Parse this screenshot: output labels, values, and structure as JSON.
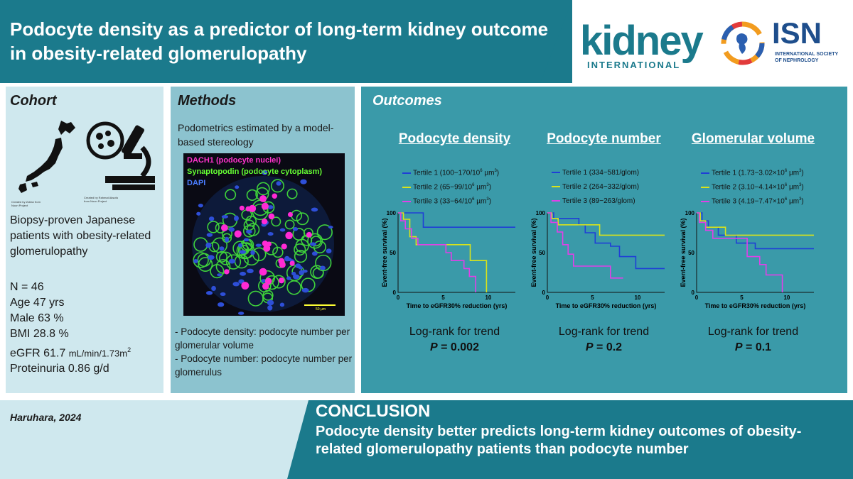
{
  "header": {
    "title": "Podocyte density as a predictor of long-term kidney outcome in obesity-related glomerulopathy",
    "journal_logo": "kidney",
    "journal_logo_sub": "INTERNATIONAL",
    "society_logo": "ISN",
    "society_sub": "INTERNATIONAL SOCIETY OF NEPHROLOGY"
  },
  "cohort": {
    "heading": "Cohort",
    "credit_left": "Created by Zoltan from Noun Project",
    "credit_right": "Created by Rahmat Aksofa from Noun Project",
    "description": "Biopsy-proven Japanese patients with obesity-related glomerulopathy",
    "stats": [
      {
        "label": "N = 46"
      },
      {
        "label": "Age 47 yrs"
      },
      {
        "label": "Male 63 %"
      },
      {
        "label": "BMI 28.8 %"
      },
      {
        "label": "eGFR 61.7",
        "unit": "mL/min/1.73m",
        "sup": "2"
      },
      {
        "label": "Proteinuria 0.86 g/d"
      }
    ]
  },
  "methods": {
    "heading": "Methods",
    "subheading": "Podometrics estimated by a model-based stereology",
    "image_labels": {
      "dach1": "DACH1 (podocyte nuclei)",
      "synaptopodin": "Synaptopodin (podocyte cytoplasm)",
      "dapi": "DAPI",
      "scale": "50 µm"
    },
    "notes": [
      "- Podocyte density: podocyte number per glomerular volume",
      "- Podocyte number: podocyte number per glomerulus"
    ]
  },
  "outcomes": {
    "heading": "Outcomes"
  },
  "colors": {
    "tertile1": "#1f3fd6",
    "tertile2": "#d9e31a",
    "tertile3": "#e040e8",
    "teal": "#1b7a8c",
    "light_panel": "#cfe8ee",
    "mid_panel": "#8cc3cf",
    "outcome_panel": "#3a9aa9"
  },
  "chart_data": [
    {
      "type": "line",
      "title": "Podocyte density",
      "xlabel": "Time to eGFR30% reduction (yrs)",
      "ylabel": "Event-free survival (%)",
      "xlim": [
        0,
        13
      ],
      "ylim": [
        0,
        100
      ],
      "xticks": [
        "0",
        "5",
        "10"
      ],
      "yticks": [
        "0",
        "50",
        "100"
      ],
      "series": [
        {
          "name": "Tertile 1 (100−170/10",
          "name_sup": "6",
          "name_tail": " µm",
          "name_sup2": "3",
          "name_end": ")",
          "x": [
            0,
            2.8,
            2.8,
            13
          ],
          "y": [
            100,
            100,
            82,
            82
          ]
        },
        {
          "name": "Tertile 2 (65−99/10",
          "name_sup": "6",
          "name_tail": " µm",
          "name_sup2": "3",
          "name_end": ")",
          "x": [
            0,
            0.6,
            0.6,
            1.3,
            1.3,
            2,
            2,
            8,
            8,
            9.8,
            9.8
          ],
          "y": [
            100,
            100,
            92,
            92,
            70,
            70,
            60,
            60,
            40,
            40,
            0
          ]
        },
        {
          "name": "Tertile 3 (33−64/10",
          "name_sup": "6",
          "name_tail": " µm",
          "name_sup2": "3",
          "name_end": ")",
          "x": [
            0,
            0.3,
            0.3,
            0.8,
            0.8,
            1.5,
            1.5,
            2.2,
            2.2,
            5.3,
            5.3,
            5.9,
            5.9,
            7.3,
            7.3,
            7.9,
            7.9,
            8.6,
            8.6
          ],
          "y": [
            100,
            100,
            90,
            90,
            80,
            80,
            68,
            68,
            60,
            60,
            50,
            50,
            40,
            40,
            30,
            30,
            20,
            20,
            0
          ]
        }
      ],
      "test": "Log-rank for trend",
      "p_label": "P",
      "p_value": "= 0.002"
    },
    {
      "type": "line",
      "title": "Podocyte number",
      "xlabel": "Time to eGFR30% reduction (yrs)",
      "ylabel": "Event-free survival (%)",
      "xlim": [
        0,
        13
      ],
      "ylim": [
        0,
        100
      ],
      "xticks": [
        "0",
        "5",
        "10"
      ],
      "yticks": [
        "0",
        "50",
        "100"
      ],
      "series": [
        {
          "name": "Tertile 1 (334−581/glom)",
          "x": [
            0,
            0.7,
            0.7,
            3.5,
            3.5,
            4.2,
            4.2,
            5.3,
            5.3,
            7,
            7,
            8,
            8,
            9.8,
            9.8,
            13
          ],
          "y": [
            100,
            100,
            93,
            93,
            85,
            85,
            75,
            75,
            62,
            62,
            58,
            58,
            45,
            45,
            30,
            30
          ]
        },
        {
          "name": "Tertile 2 (264−332/glom)",
          "x": [
            0,
            0.5,
            0.5,
            1.2,
            1.2,
            5.8,
            5.8,
            13
          ],
          "y": [
            100,
            100,
            93,
            93,
            85,
            85,
            72,
            72
          ]
        },
        {
          "name": "Tertile 3 (89−263/glom)",
          "x": [
            0,
            0.4,
            0.4,
            1.1,
            1.1,
            1.7,
            1.7,
            2.3,
            2.3,
            2.9,
            2.9,
            7,
            7,
            8.4
          ],
          "y": [
            100,
            100,
            88,
            88,
            76,
            76,
            60,
            60,
            48,
            48,
            33,
            33,
            18,
            18
          ]
        }
      ],
      "test": "Log-rank for trend",
      "p_label": "P",
      "p_value": "= 0.2"
    },
    {
      "type": "line",
      "title": "Glomerular volume",
      "xlabel": "Time to eGFR30% reduction (yrs)",
      "ylabel": "Event-free survival (%)",
      "xlim": [
        0,
        13
      ],
      "ylim": [
        0,
        100
      ],
      "xticks": [
        "0",
        "5",
        "10"
      ],
      "yticks": [
        "0",
        "50",
        "100"
      ],
      "series": [
        {
          "name": "Tertile 1 (1.73−3.02×10",
          "name_sup": "6",
          "name_tail": " µm",
          "name_sup2": "3",
          "name_end": ")",
          "x": [
            0,
            0.6,
            0.6,
            1.3,
            1.3,
            2.4,
            2.4,
            4.4,
            4.4,
            6.5,
            6.5,
            13
          ],
          "y": [
            100,
            100,
            90,
            90,
            82,
            82,
            72,
            72,
            62,
            62,
            55,
            55
          ]
        },
        {
          "name": "Tertile 2 (3.10−4.14×10",
          "name_sup": "6",
          "name_tail": " µm",
          "name_sup2": "3",
          "name_end": ")",
          "x": [
            0,
            0.4,
            0.4,
            1,
            1,
            3.2,
            3.2,
            13
          ],
          "y": [
            100,
            100,
            90,
            90,
            82,
            82,
            72,
            72
          ]
        },
        {
          "name": "Tertile 3 (4.19−7.47×10",
          "name_sup": "6",
          "name_tail": " µm",
          "name_sup2": "3",
          "name_end": ")",
          "x": [
            0,
            0.3,
            0.3,
            1,
            1,
            1.8,
            1.8,
            5.6,
            5.6,
            7,
            7,
            7.7,
            7.7,
            9.5,
            9.5
          ],
          "y": [
            100,
            100,
            88,
            88,
            78,
            78,
            68,
            68,
            45,
            45,
            35,
            35,
            22,
            22,
            0
          ]
        }
      ],
      "test": "Log-rank for trend",
      "p_label": "P",
      "p_value": "= 0.1"
    }
  ],
  "footer": {
    "author": "Haruhara, 2024",
    "conclusion_heading": "CONCLUSION",
    "conclusion_text": "Podocyte density better predicts long-term kidney outcomes of obesity-related glomerulopathy patients than podocyte number"
  }
}
